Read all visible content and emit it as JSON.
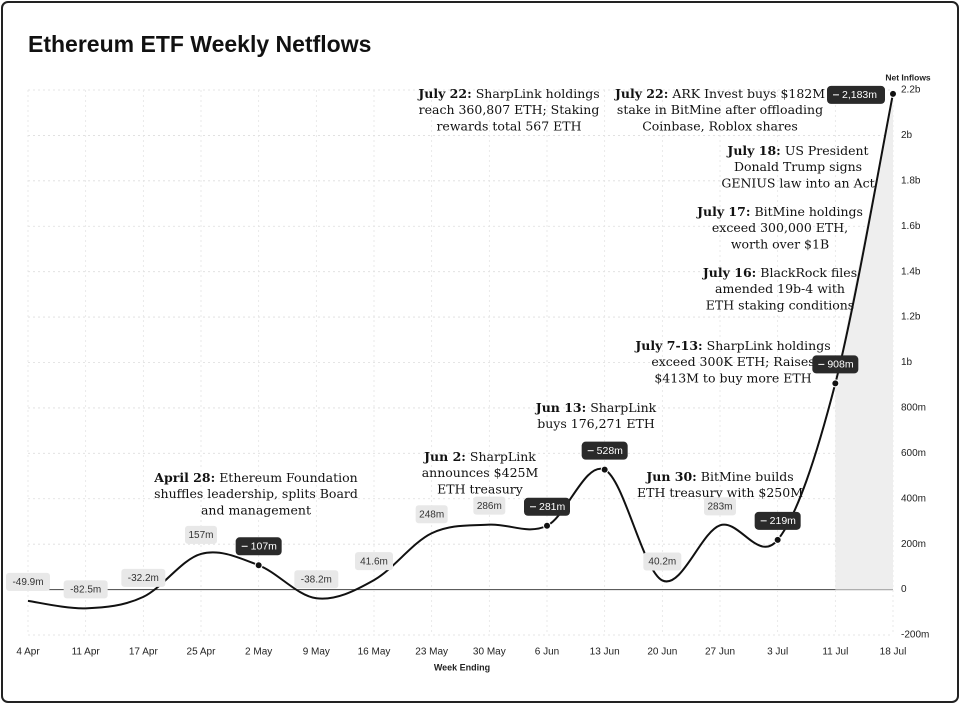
{
  "chart_data": {
    "type": "line",
    "title": "Ethereum ETF Weekly Netflows",
    "x_label": "Week Ending",
    "y_label": "Net Inflows",
    "categories": [
      "4 Apr",
      "11 Apr",
      "17 Apr",
      "25 Apr",
      "2 May",
      "9 May",
      "16 May",
      "23 May",
      "30 May",
      "6 Jun",
      "13 Jun",
      "20 Jun",
      "27 Jun",
      "3 Jul",
      "11 Jul",
      "18 Jul"
    ],
    "values": [
      -49.9,
      -82.5,
      -32.2,
      157,
      107,
      -38.2,
      41.6,
      248,
      286,
      281,
      528,
      40.2,
      283,
      219,
      908,
      2183
    ],
    "value_labels": [
      "-49.9m",
      "-82.5m",
      "-32.2m",
      "157m",
      "107m",
      "-38.2m",
      "41.6m",
      "248m",
      "286m",
      "281m",
      "528m",
      "40.2m",
      "283m",
      "219m",
      "908m",
      "2,183m"
    ],
    "highlight": [
      false,
      false,
      false,
      false,
      true,
      false,
      false,
      false,
      false,
      true,
      true,
      false,
      false,
      true,
      true,
      true
    ],
    "color": "#111111",
    "ylim": [
      -200,
      2200
    ],
    "yticks": [
      {
        "value": -200,
        "label": "-200m"
      },
      0,
      {
        "value": 200,
        "label": "200m"
      },
      {
        "value": 400,
        "label": "400m"
      },
      {
        "value": 600,
        "label": "600m"
      },
      {
        "value": 800,
        "label": "800m"
      },
      {
        "value": 1000,
        "label": "1b"
      },
      {
        "value": 1200,
        "label": "1.2b"
      },
      {
        "value": 1400,
        "label": "1.4b"
      },
      {
        "value": 1600,
        "label": "1.6b"
      },
      {
        "value": 1800,
        "label": "1.8b"
      },
      {
        "value": 2000,
        "label": "2b"
      },
      {
        "value": 2200,
        "label": "2.2b"
      }
    ],
    "grid": true,
    "annotations": [
      {
        "title": "April 28:",
        "lines": [
          "Ethereum Foundation",
          "shuffles leadership, splits Board",
          "and management"
        ]
      },
      {
        "title": "Jun 2:",
        "lines": [
          "SharpLink",
          "announces $425M",
          "ETH treasury"
        ]
      },
      {
        "title": "Jun 13:",
        "lines": [
          "SharpLink",
          "buys 176,271 ETH"
        ]
      },
      {
        "title": "Jun 30:",
        "lines": [
          "BitMine builds",
          "ETH treasury with $250M"
        ]
      },
      {
        "title": "July 7-13:",
        "lines": [
          "SharpLink holdings",
          "exceed 300K ETH; Raises",
          "$413M to buy more ETH"
        ]
      },
      {
        "title": "July 16:",
        "lines": [
          "BlackRock files",
          "amended 19b-4 with",
          "ETH staking conditions"
        ]
      },
      {
        "title": "July 17:",
        "lines": [
          "BitMine holdings",
          "exceed 300,000 ETH,",
          "worth over $1B"
        ]
      },
      {
        "title": "July 18:",
        "lines": [
          "US President",
          "Donald Trump signs",
          "GENIUS law into an Act"
        ]
      },
      {
        "title": "July 22:",
        "lines": [
          "ARK Invest buys $182M",
          "stake in BitMine after offloading",
          "Coinbase, Roblox shares"
        ]
      },
      {
        "title": "July 22:",
        "lines": [
          "SharpLink holdings",
          "reach 360,807 ETH; Staking",
          "rewards total 567 ETH"
        ]
      }
    ]
  }
}
